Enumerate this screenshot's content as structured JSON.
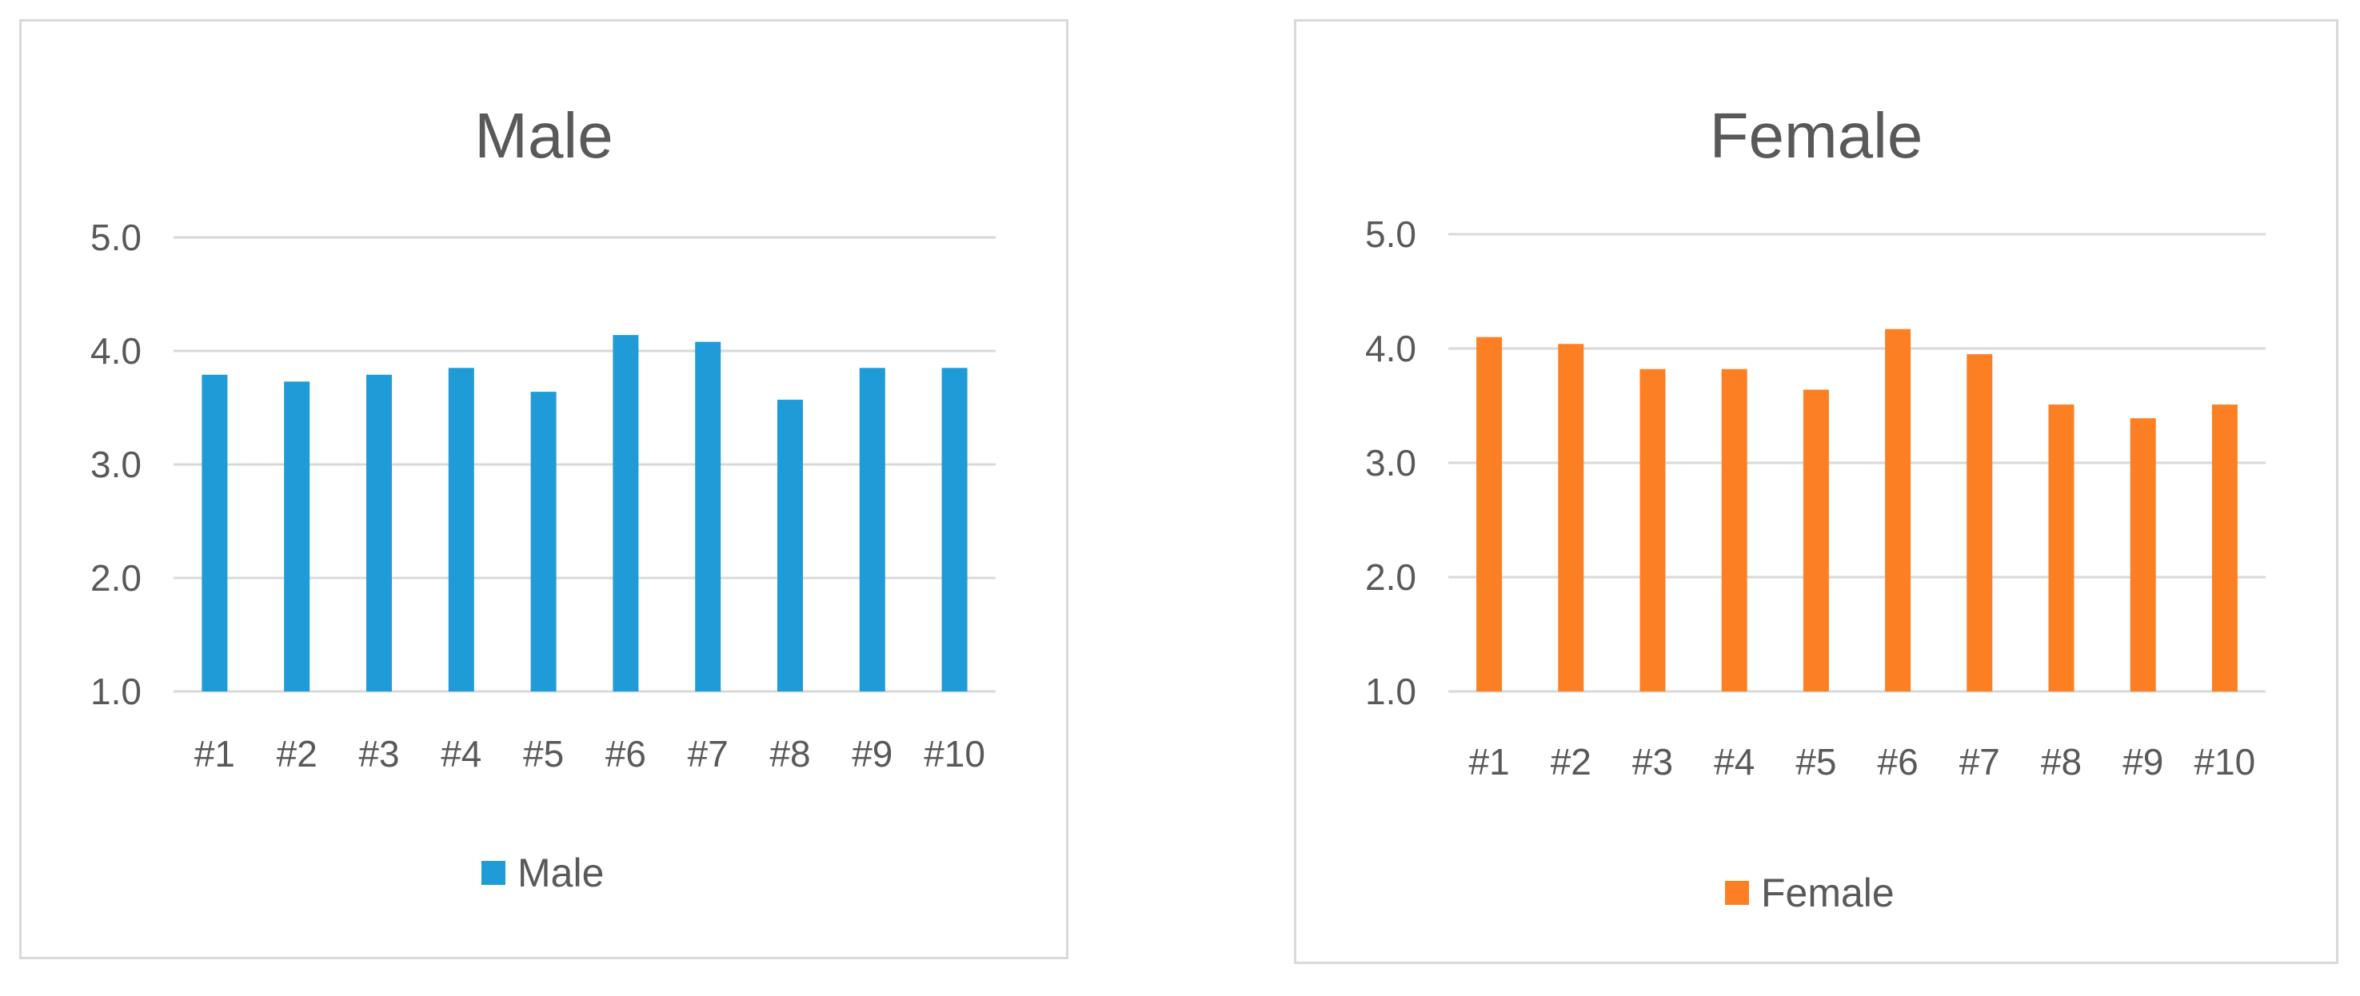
{
  "chart_data": [
    {
      "type": "bar",
      "title": "Male",
      "xlabel": "",
      "ylabel": "",
      "categories": [
        "#1",
        "#2",
        "#3",
        "#4",
        "#5",
        "#6",
        "#7",
        "#8",
        "#9",
        "#10"
      ],
      "series": [
        {
          "name": "Male",
          "color": "#1f9bd7",
          "values": [
            3.79,
            3.73,
            3.79,
            3.85,
            3.64,
            4.14,
            4.08,
            3.57,
            3.85,
            3.85
          ]
        }
      ],
      "ylim": [
        1.0,
        5.0
      ],
      "yticks": [
        "1.0",
        "2.0",
        "3.0",
        "4.0",
        "5.0"
      ],
      "grid": true,
      "legend": "bottom"
    },
    {
      "type": "bar",
      "title": "Female",
      "xlabel": "",
      "ylabel": "",
      "categories": [
        "#1",
        "#2",
        "#3",
        "#4",
        "#5",
        "#6",
        "#7",
        "#8",
        "#9",
        "#10"
      ],
      "series": [
        {
          "name": "Female",
          "color": "#fd7f23",
          "values": [
            4.1,
            4.04,
            3.82,
            3.82,
            3.64,
            4.17,
            3.95,
            3.51,
            3.39,
            3.51
          ]
        }
      ],
      "ylim": [
        1.0,
        5.0
      ],
      "yticks": [
        "1.0",
        "2.0",
        "3.0",
        "4.0",
        "5.0"
      ],
      "grid": true,
      "legend": "bottom"
    }
  ]
}
